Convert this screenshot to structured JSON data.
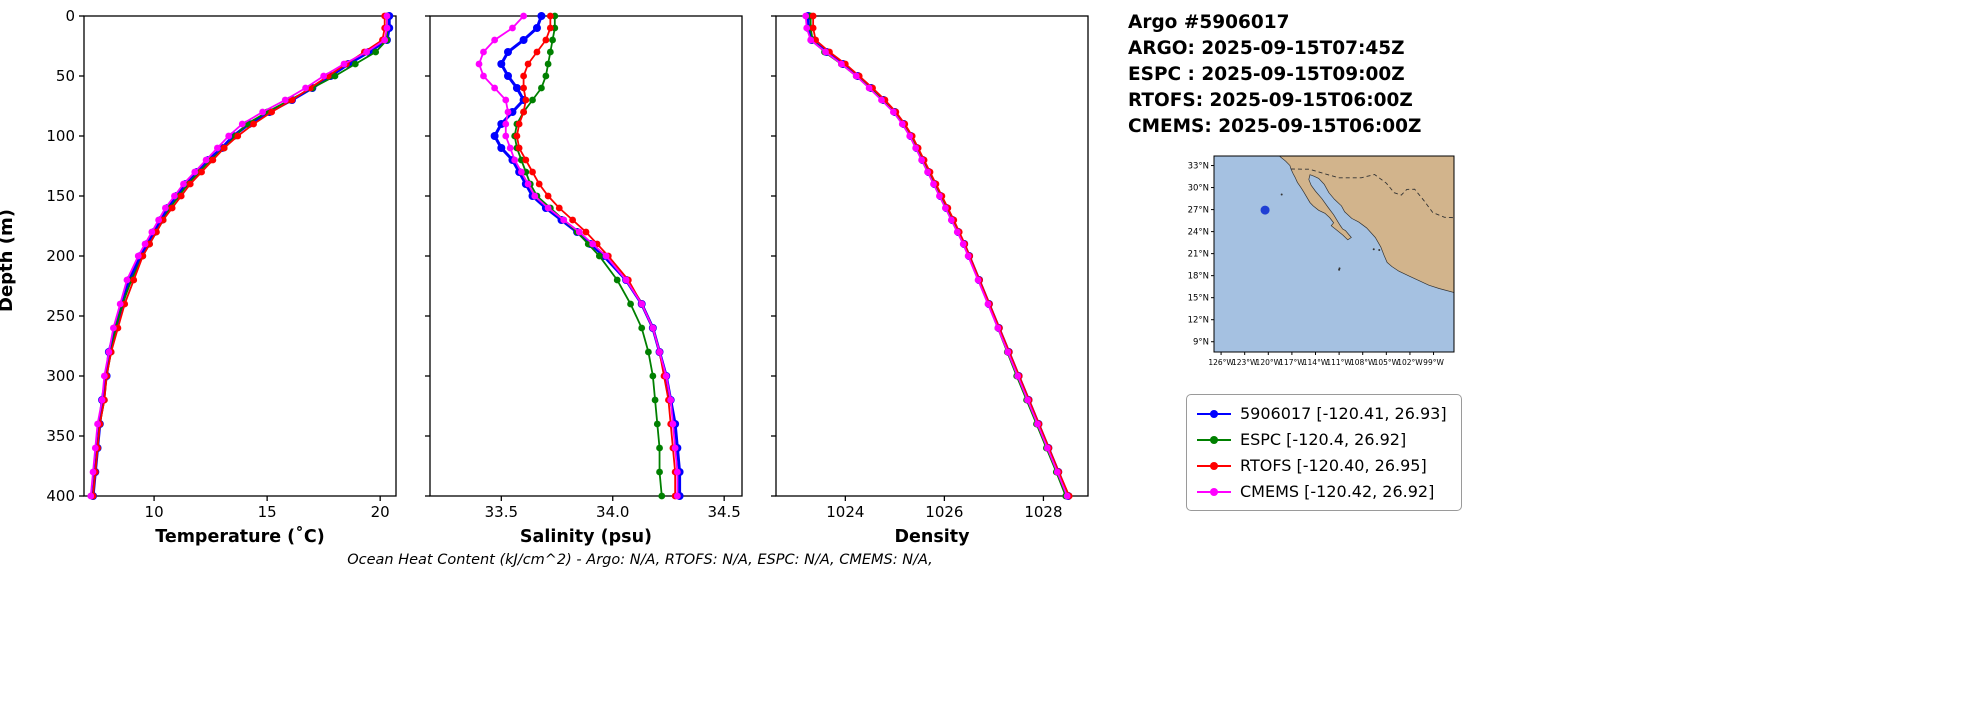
{
  "header": {
    "title": "Argo #5906017",
    "lines": [
      "ARGO: 2025-09-15T07:45Z",
      "ESPC : 2025-09-15T09:00Z",
      "RTOFS: 2025-09-15T06:00Z",
      "CMEMS: 2025-09-15T06:00Z"
    ]
  },
  "footer": {
    "text": "Ocean Heat Content (kJ/cm^2) - Argo: N/A,  RTOFS: N/A,  ESPC: N/A,  CMEMS: N/A,"
  },
  "legend": {
    "items": [
      {
        "label": "5906017 [-120.41, 26.93]",
        "color": "#0000ff"
      },
      {
        "label": "ESPC [-120.4, 26.92]",
        "color": "#008000"
      },
      {
        "label": "RTOFS [-120.40, 26.95]",
        "color": "#ff0000"
      },
      {
        "label": "CMEMS [-120.42, 26.92]",
        "color": "#ff00ff"
      }
    ]
  },
  "map": {
    "lat_tick_labels": [
      "33°N",
      "30°N",
      "27°N",
      "24°N",
      "21°N",
      "18°N",
      "15°N",
      "12°N",
      "9°N"
    ],
    "lat_tick_values": [
      33,
      30,
      27,
      24,
      21,
      18,
      15,
      12,
      9
    ],
    "lon_tick_labels": [
      "126°W",
      "123°W",
      "120°W",
      "117°W",
      "114°W",
      "111°W",
      "108°W",
      "105°W",
      "102°W",
      "99°W"
    ],
    "lon_tick_values": [
      -126,
      -123,
      -120,
      -117,
      -114,
      -111,
      -108,
      -105,
      -102,
      -99
    ],
    "lon_range": [
      -126.9,
      -96.4
    ],
    "lat_range": [
      7.6,
      34.3
    ],
    "float_position": {
      "lon": -120.41,
      "lat": 26.93
    },
    "marker_color": "#1f3fd4",
    "ocean_color": "#a5c1e1",
    "land_color": "#d2b48c"
  },
  "chart_data": [
    {
      "type": "line",
      "xlabel": "Temperature (˚C)",
      "ylabel": "Depth (m)",
      "xlim": [
        6.9,
        20.7
      ],
      "xticks": [
        10,
        15,
        20
      ],
      "ylim": [
        0,
        400
      ],
      "yticks": [
        0,
        50,
        100,
        150,
        200,
        250,
        300,
        350,
        400
      ],
      "y_inverted": true,
      "depths": [
        0,
        10,
        20,
        30,
        40,
        50,
        60,
        70,
        80,
        90,
        100,
        110,
        120,
        130,
        140,
        150,
        160,
        170,
        180,
        190,
        200,
        220,
        240,
        260,
        280,
        300,
        320,
        340,
        360,
        380,
        400
      ],
      "series": [
        {
          "name": "5906017",
          "color": "#0000ff",
          "width": 3,
          "marker": 4,
          "values": [
            20.4,
            20.4,
            20.3,
            19.5,
            18.6,
            17.8,
            17.0,
            16.1,
            15.1,
            14.2,
            13.5,
            13.0,
            12.4,
            11.9,
            11.4,
            11.0,
            10.6,
            10.3,
            10.0,
            9.7,
            9.4,
            8.9,
            8.6,
            8.3,
            8.0,
            7.9,
            7.7,
            7.6,
            7.5,
            7.4,
            7.3
          ]
        },
        {
          "name": "ESPC",
          "color": "#008000",
          "width": 1.8,
          "marker": 3.4,
          "values": [
            20.3,
            20.3,
            20.3,
            19.8,
            18.9,
            18.0,
            17.0,
            16.0,
            15.0,
            14.1,
            13.6,
            13.1,
            12.5,
            12.0,
            11.5,
            11.1,
            10.7,
            10.4,
            10.1,
            9.8,
            9.5,
            9.0,
            8.6,
            8.3,
            8.1,
            7.9,
            7.8,
            7.6,
            7.5,
            7.4,
            7.3
          ]
        },
        {
          "name": "RTOFS",
          "color": "#ff0000",
          "width": 1.8,
          "marker": 3.4,
          "values": [
            20.2,
            20.2,
            20.1,
            19.3,
            18.5,
            17.7,
            16.9,
            16.1,
            15.2,
            14.4,
            13.7,
            13.1,
            12.6,
            12.1,
            11.6,
            11.2,
            10.8,
            10.4,
            10.1,
            9.8,
            9.5,
            9.1,
            8.7,
            8.4,
            8.1,
            7.9,
            7.8,
            7.6,
            7.5,
            7.4,
            7.3
          ]
        },
        {
          "name": "CMEMS",
          "color": "#ff00ff",
          "width": 1.8,
          "marker": 3.4,
          "values": [
            20.3,
            20.3,
            20.2,
            19.4,
            18.4,
            17.5,
            16.7,
            15.8,
            14.8,
            13.9,
            13.3,
            12.8,
            12.3,
            11.8,
            11.3,
            10.9,
            10.5,
            10.2,
            9.9,
            9.6,
            9.3,
            8.8,
            8.5,
            8.2,
            8.0,
            7.8,
            7.7,
            7.5,
            7.4,
            7.3,
            7.2
          ]
        }
      ]
    },
    {
      "type": "line",
      "xlabel": "Salinity (psu)",
      "xlim": [
        33.18,
        34.58
      ],
      "xticks": [
        33.5,
        34.0,
        34.5
      ],
      "ylim": [
        0,
        400
      ],
      "yticks": [
        0,
        50,
        100,
        150,
        200,
        250,
        300,
        350,
        400
      ],
      "y_inverted": true,
      "depths": [
        0,
        10,
        20,
        30,
        40,
        50,
        60,
        70,
        80,
        90,
        100,
        110,
        120,
        130,
        140,
        150,
        160,
        170,
        180,
        190,
        200,
        220,
        240,
        260,
        280,
        300,
        320,
        340,
        360,
        380,
        400
      ],
      "series": [
        {
          "name": "5906017",
          "color": "#0000ff",
          "width": 3,
          "marker": 4,
          "values": [
            33.68,
            33.66,
            33.6,
            33.53,
            33.5,
            33.53,
            33.57,
            33.6,
            33.55,
            33.5,
            33.47,
            33.5,
            33.55,
            33.58,
            33.61,
            33.64,
            33.7,
            33.77,
            33.84,
            33.9,
            33.96,
            34.06,
            34.13,
            34.18,
            34.21,
            34.24,
            34.26,
            34.28,
            34.29,
            34.3,
            34.3
          ]
        },
        {
          "name": "ESPC",
          "color": "#008000",
          "width": 1.8,
          "marker": 3.4,
          "values": [
            33.74,
            33.74,
            33.73,
            33.72,
            33.71,
            33.7,
            33.68,
            33.64,
            33.6,
            33.57,
            33.56,
            33.57,
            33.59,
            33.61,
            33.63,
            33.66,
            33.72,
            33.78,
            33.84,
            33.89,
            33.94,
            34.02,
            34.08,
            34.13,
            34.16,
            34.18,
            34.19,
            34.2,
            34.21,
            34.21,
            34.22
          ]
        },
        {
          "name": "RTOFS",
          "color": "#ff0000",
          "width": 1.8,
          "marker": 3.4,
          "values": [
            33.72,
            33.72,
            33.7,
            33.66,
            33.62,
            33.6,
            33.6,
            33.61,
            33.6,
            33.58,
            33.57,
            33.58,
            33.61,
            33.64,
            33.67,
            33.71,
            33.76,
            33.82,
            33.88,
            33.93,
            33.98,
            34.07,
            34.13,
            34.18,
            34.21,
            34.23,
            34.25,
            34.26,
            34.27,
            34.28,
            34.28
          ]
        },
        {
          "name": "CMEMS",
          "color": "#ff00ff",
          "width": 1.8,
          "marker": 3.4,
          "values": [
            33.6,
            33.55,
            33.47,
            33.42,
            33.4,
            33.42,
            33.47,
            33.52,
            33.53,
            33.52,
            33.52,
            33.54,
            33.56,
            33.59,
            33.62,
            33.65,
            33.71,
            33.78,
            33.85,
            33.91,
            33.97,
            34.06,
            34.13,
            34.18,
            34.21,
            34.24,
            34.26,
            34.27,
            34.28,
            34.29,
            34.29
          ]
        }
      ]
    },
    {
      "type": "line",
      "xlabel": "Density",
      "xlim": [
        1022.6,
        1028.9
      ],
      "xticks": [
        1024,
        1026,
        1028
      ],
      "ylim": [
        0,
        400
      ],
      "yticks": [
        0,
        50,
        100,
        150,
        200,
        250,
        300,
        350,
        400
      ],
      "y_inverted": true,
      "depths": [
        0,
        10,
        20,
        30,
        40,
        50,
        60,
        70,
        80,
        90,
        100,
        110,
        120,
        130,
        140,
        150,
        160,
        170,
        180,
        190,
        200,
        220,
        240,
        260,
        280,
        300,
        320,
        340,
        360,
        380,
        400
      ],
      "series": [
        {
          "name": "5906017",
          "color": "#0000ff",
          "width": 3,
          "marker": 4,
          "values": [
            1023.25,
            1023.25,
            1023.32,
            1023.62,
            1023.95,
            1024.25,
            1024.52,
            1024.77,
            1025.0,
            1025.18,
            1025.32,
            1025.44,
            1025.56,
            1025.68,
            1025.8,
            1025.92,
            1026.04,
            1026.16,
            1026.28,
            1026.4,
            1026.5,
            1026.7,
            1026.9,
            1027.1,
            1027.3,
            1027.5,
            1027.7,
            1027.9,
            1028.1,
            1028.3,
            1028.5
          ]
        },
        {
          "name": "ESPC",
          "color": "#008000",
          "width": 1.8,
          "marker": 3.4,
          "values": [
            1023.3,
            1023.3,
            1023.34,
            1023.58,
            1023.92,
            1024.22,
            1024.5,
            1024.76,
            1025.0,
            1025.18,
            1025.33,
            1025.45,
            1025.57,
            1025.69,
            1025.81,
            1025.93,
            1026.05,
            1026.17,
            1026.29,
            1026.4,
            1026.5,
            1026.7,
            1026.89,
            1027.08,
            1027.27,
            1027.46,
            1027.66,
            1027.86,
            1028.06,
            1028.26,
            1028.45
          ]
        },
        {
          "name": "RTOFS",
          "color": "#ff0000",
          "width": 1.8,
          "marker": 3.4,
          "values": [
            1023.35,
            1023.35,
            1023.4,
            1023.68,
            1024.0,
            1024.28,
            1024.55,
            1024.8,
            1025.02,
            1025.2,
            1025.35,
            1025.47,
            1025.59,
            1025.71,
            1025.83,
            1025.95,
            1026.07,
            1026.19,
            1026.3,
            1026.41,
            1026.51,
            1026.71,
            1026.91,
            1027.11,
            1027.31,
            1027.51,
            1027.71,
            1027.91,
            1028.11,
            1028.31,
            1028.52
          ]
        },
        {
          "name": "CMEMS",
          "color": "#ff00ff",
          "width": 1.8,
          "marker": 3.4,
          "values": [
            1023.2,
            1023.22,
            1023.3,
            1023.6,
            1023.92,
            1024.22,
            1024.48,
            1024.73,
            1024.97,
            1025.15,
            1025.3,
            1025.42,
            1025.54,
            1025.66,
            1025.78,
            1025.9,
            1026.02,
            1026.14,
            1026.26,
            1026.38,
            1026.48,
            1026.68,
            1026.88,
            1027.08,
            1027.28,
            1027.48,
            1027.68,
            1027.88,
            1028.08,
            1028.28,
            1028.48
          ]
        }
      ]
    }
  ]
}
